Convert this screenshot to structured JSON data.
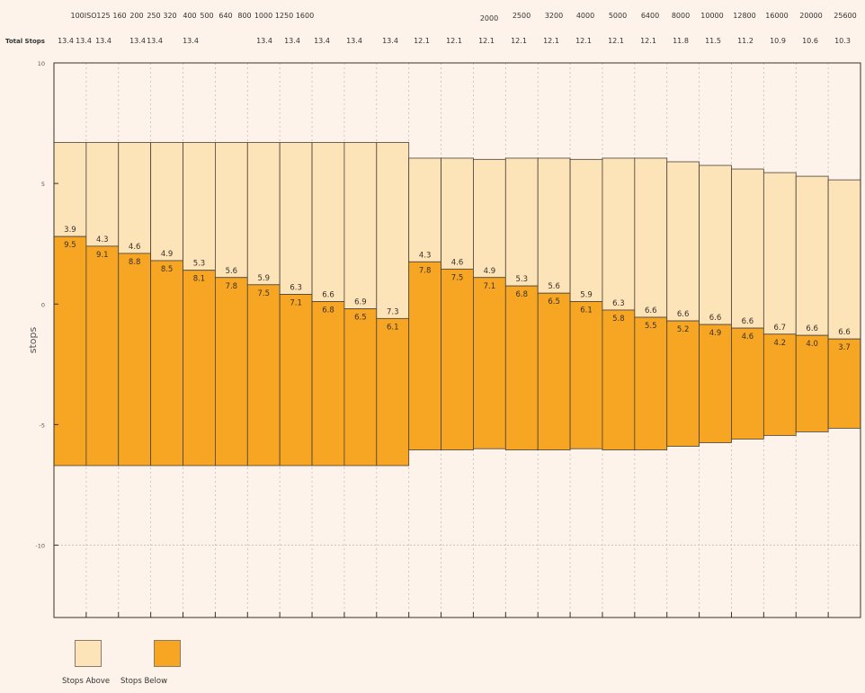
{
  "chart_data": {
    "type": "bar",
    "ylabel": "stops",
    "ylim": [
      -13,
      10
    ],
    "yticks": [
      10,
      5,
      0,
      -5,
      -10
    ],
    "grid": true,
    "total_stops_label": "Total Stops",
    "iso_header_labels": [
      "100ISO",
      "125",
      "160",
      "200",
      "250",
      "320",
      "400",
      "500",
      "640",
      "800",
      "1000",
      "1250",
      "1600",
      "2000",
      "2500",
      "3200",
      "4000",
      "5000",
      "6400",
      "8000",
      "10000",
      "12800",
      "16000",
      "20000",
      "25600"
    ],
    "total_stops": [
      "13.4",
      "13.4",
      "13.4",
      "13.4",
      "13.4",
      "13.4",
      "13.4",
      "13.4",
      "13.4",
      "13.4",
      "13.4",
      "12.1",
      "12.1",
      "12.1",
      "12.1",
      "12.1",
      "12.1",
      "12.1",
      "12.1",
      "11.8",
      "11.5",
      "11.2",
      "10.9",
      "10.6",
      "10.3"
    ],
    "series": [
      {
        "name": "Stops Above",
        "color": "#fde3b8",
        "values": [
          3.9,
          4.3,
          4.6,
          4.9,
          5.3,
          5.6,
          5.9,
          6.3,
          6.6,
          6.9,
          7.3,
          4.3,
          4.6,
          4.9,
          5.3,
          5.6,
          5.9,
          6.3,
          6.6,
          6.6,
          6.6,
          6.6,
          6.7,
          6.6,
          6.6
        ]
      },
      {
        "name": "Stops Below",
        "color": "#f7a623",
        "values": [
          9.5,
          9.1,
          8.8,
          8.5,
          8.1,
          7.8,
          7.5,
          7.1,
          6.8,
          6.5,
          6.1,
          7.8,
          7.5,
          7.1,
          6.8,
          6.5,
          6.1,
          5.8,
          5.5,
          5.2,
          4.9,
          4.6,
          4.2,
          4.0,
          3.7
        ]
      }
    ],
    "legend": "bottom-left"
  }
}
